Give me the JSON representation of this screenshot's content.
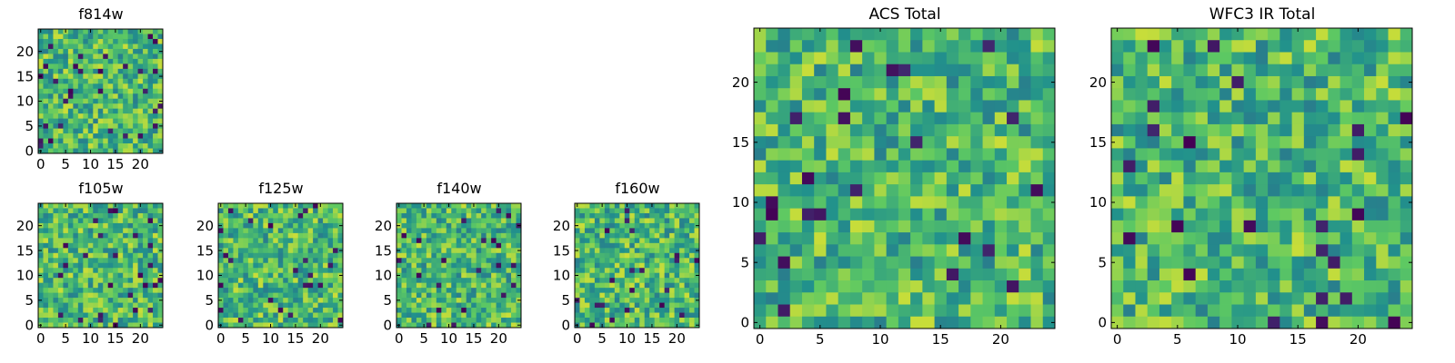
{
  "figure": {
    "colormap": "viridis",
    "colormap_stops": [
      "#440154",
      "#3b528b",
      "#21918c",
      "#5ec962",
      "#fde725"
    ],
    "note": "Each panel is a 25x25 pixel-noise image rendered with the viridis colormap."
  },
  "chart_data": [
    {
      "id": "f814w",
      "type": "heatmap",
      "title": "f814w",
      "grid_size": 25,
      "seed": 814,
      "xticks": [
        "0",
        "5",
        "10",
        "15",
        "20"
      ],
      "yticks": [
        "0",
        "5",
        "10",
        "15",
        "20"
      ],
      "xlim": [
        -0.5,
        24.5
      ],
      "ylim": [
        -0.5,
        24.5
      ]
    },
    {
      "id": "f105w",
      "type": "heatmap",
      "title": "f105w",
      "grid_size": 25,
      "seed": 105,
      "xticks": [
        "0",
        "5",
        "10",
        "15",
        "20"
      ],
      "yticks": [
        "0",
        "5",
        "10",
        "15",
        "20"
      ],
      "xlim": [
        -0.5,
        24.5
      ],
      "ylim": [
        -0.5,
        24.5
      ]
    },
    {
      "id": "f125w",
      "type": "heatmap",
      "title": "f125w",
      "grid_size": 25,
      "seed": 125,
      "xticks": [
        "0",
        "5",
        "10",
        "15",
        "20"
      ],
      "yticks": [
        "0",
        "5",
        "10",
        "15",
        "20"
      ],
      "xlim": [
        -0.5,
        24.5
      ],
      "ylim": [
        -0.5,
        24.5
      ]
    },
    {
      "id": "f140w",
      "type": "heatmap",
      "title": "f140w",
      "grid_size": 25,
      "seed": 140,
      "xticks": [
        "0",
        "5",
        "10",
        "15",
        "20"
      ],
      "yticks": [
        "0",
        "5",
        "10",
        "15",
        "20"
      ],
      "xlim": [
        -0.5,
        24.5
      ],
      "ylim": [
        -0.5,
        24.5
      ]
    },
    {
      "id": "f160w",
      "type": "heatmap",
      "title": "f160w",
      "grid_size": 25,
      "seed": 160,
      "xticks": [
        "0",
        "5",
        "10",
        "15",
        "20"
      ],
      "yticks": [
        "0",
        "5",
        "10",
        "15",
        "20"
      ],
      "xlim": [
        -0.5,
        24.5
      ],
      "ylim": [
        -0.5,
        24.5
      ]
    },
    {
      "id": "acs-total",
      "type": "heatmap",
      "title": "ACS Total",
      "grid_size": 25,
      "seed": 9001,
      "xticks": [
        "0",
        "5",
        "10",
        "15",
        "20"
      ],
      "yticks": [
        "0",
        "5",
        "10",
        "15",
        "20"
      ],
      "xlim": [
        -0.5,
        24.5
      ],
      "ylim": [
        -0.5,
        24.5
      ]
    },
    {
      "id": "wfc3-ir-total",
      "type": "heatmap",
      "title": "WFC3 IR Total",
      "grid_size": 25,
      "seed": 9002,
      "xticks": [
        "0",
        "5",
        "10",
        "15",
        "20"
      ],
      "yticks": [
        "0",
        "5",
        "10",
        "15",
        "20"
      ],
      "xlim": [
        -0.5,
        24.5
      ],
      "ylim": [
        -0.5,
        24.5
      ]
    }
  ]
}
